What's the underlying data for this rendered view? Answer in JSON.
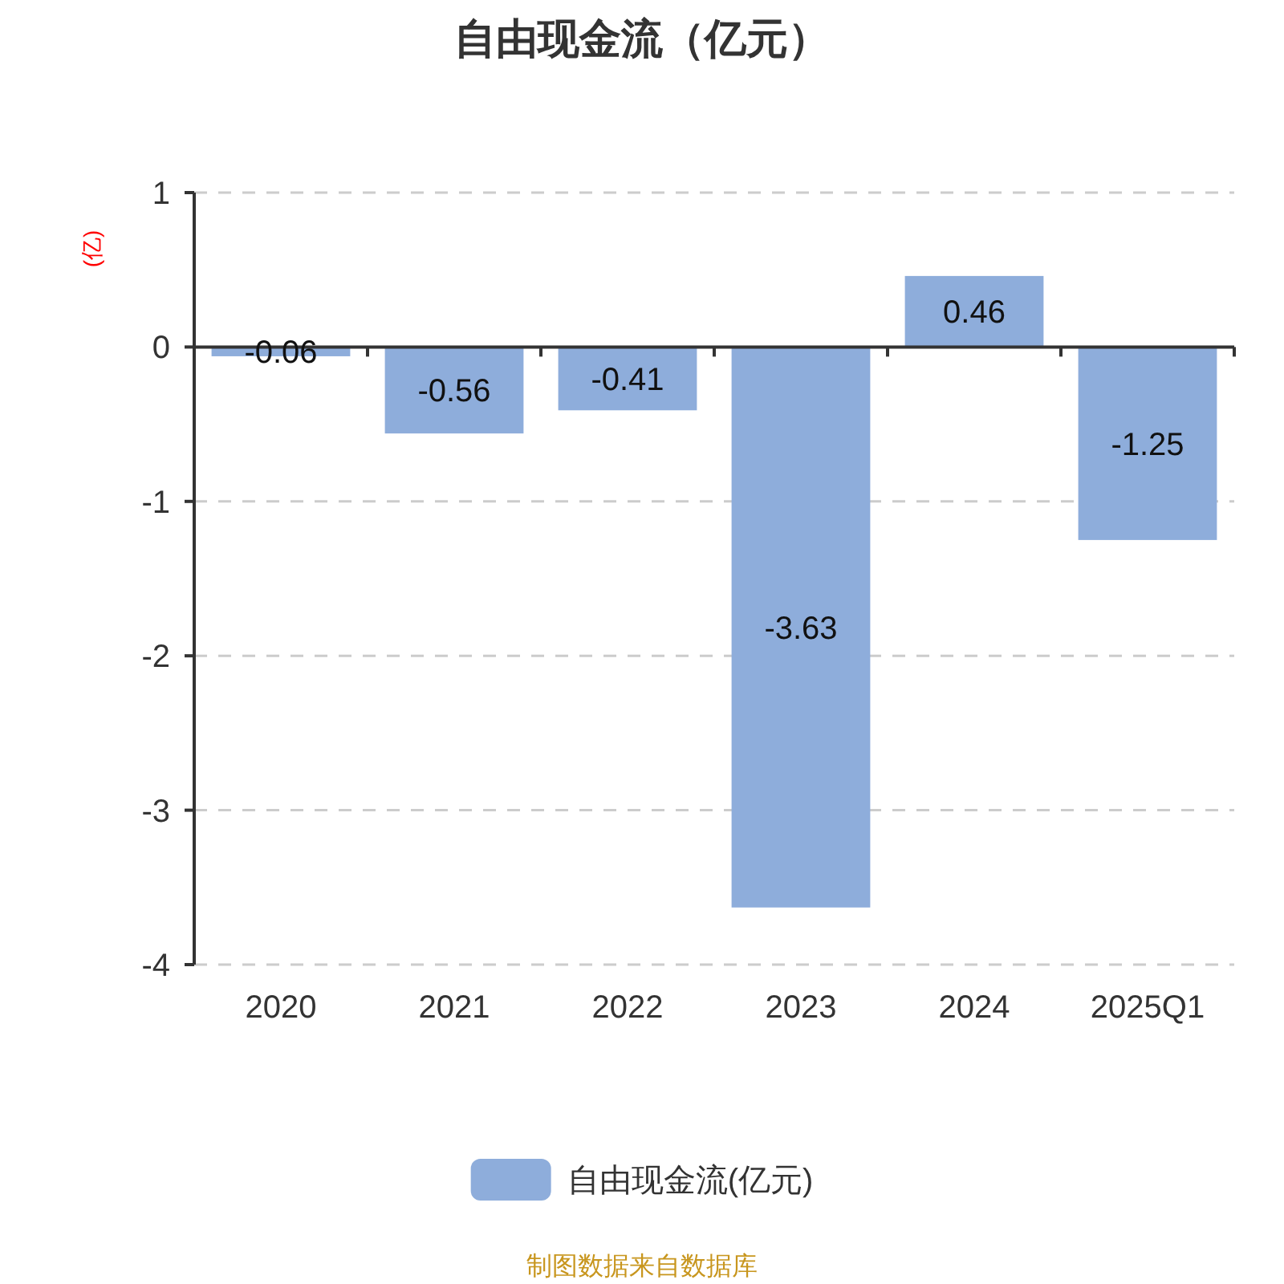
{
  "chart_data": {
    "type": "bar",
    "title": "自由现金流（亿元）",
    "ylabel": "(亿)",
    "categories": [
      "2020",
      "2021",
      "2022",
      "2023",
      "2024",
      "2025Q1"
    ],
    "series": [
      {
        "name": "自由现金流(亿元)",
        "color": "#8eaddb",
        "values": [
          -0.06,
          -0.56,
          -0.41,
          -3.63,
          0.46,
          -1.25
        ]
      }
    ],
    "ylim": [
      -4,
      1
    ],
    "yticks": [
      -4,
      -3,
      -2,
      -1,
      0,
      1
    ],
    "grid": "y",
    "legend": "bottom",
    "data_labels": true,
    "annotations": [
      "制图数据来自数据库"
    ]
  }
}
